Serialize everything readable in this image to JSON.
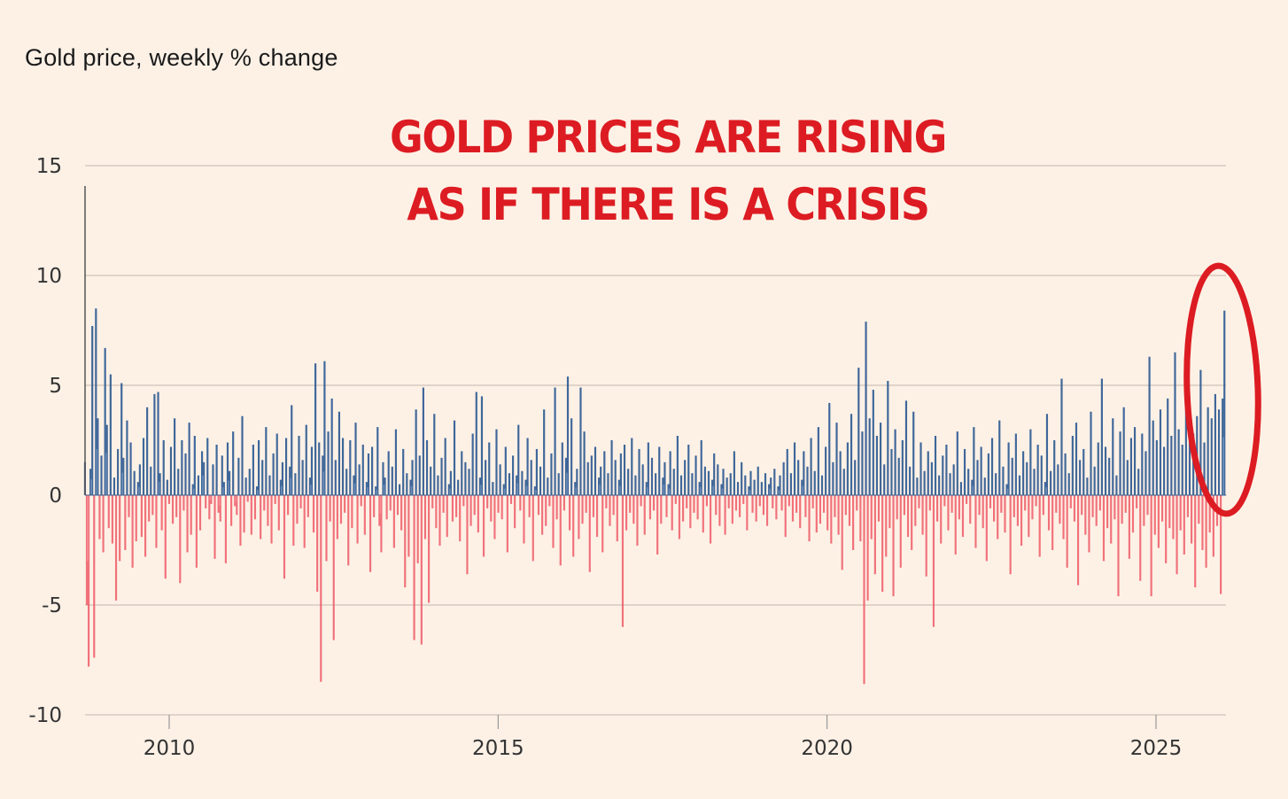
{
  "chart_data": {
    "type": "bar",
    "title": "Gold price, weekly % change",
    "annotation": {
      "headline_line1": "GOLD PRICES ARE RISING",
      "headline_line2": "AS IF THERE IS A CRISIS",
      "highlight": "red ellipse around the most recent weeks (late 2025 – early 2026)",
      "highlight_color": "#dc1c22"
    },
    "xlabel": "",
    "ylabel": "",
    "xlim": [
      2008.72,
      2026.06
    ],
    "ylim": [
      -10,
      15
    ],
    "yticks": [
      15,
      10,
      5,
      0,
      -5,
      -10
    ],
    "ytick_labels": [
      "15",
      "10",
      "5",
      "0",
      "-5",
      "-10"
    ],
    "xticks": [
      2010,
      2015,
      2020,
      2025
    ],
    "xtick_labels": [
      "2010",
      "2015",
      "2020",
      "2025"
    ],
    "grid": true,
    "legend": "none",
    "colors": {
      "positive": "#2f5b93",
      "negative": "#ee5a66",
      "grid": "#d7cbc0",
      "axis": "#555555"
    },
    "frequency": "weekly",
    "notable_points": [
      {
        "x": 2008.9,
        "value": 8.5
      },
      {
        "x": 2008.85,
        "value": 7.7
      },
      {
        "x": 2008.79,
        "value": -7.8
      },
      {
        "x": 2008.87,
        "value": -7.4
      },
      {
        "x": 2009.1,
        "value": 6.7
      },
      {
        "x": 2011.7,
        "value": 6.0
      },
      {
        "x": 2011.85,
        "value": 6.1
      },
      {
        "x": 2011.75,
        "value": -8.5
      },
      {
        "x": 2012.0,
        "value": -6.6
      },
      {
        "x": 2013.5,
        "value": -6.6
      },
      {
        "x": 2013.65,
        "value": -6.8
      },
      {
        "x": 2016.1,
        "value": 5.4
      },
      {
        "x": 2016.85,
        "value": -6.0
      },
      {
        "x": 2020.2,
        "value": 7.9
      },
      {
        "x": 2020.17,
        "value": -8.6
      },
      {
        "x": 2021.5,
        "value": -6.0
      },
      {
        "x": 2023.3,
        "value": 5.3
      },
      {
        "x": 2024.8,
        "value": 6.3
      },
      {
        "x": 2025.3,
        "value": 6.5
      },
      {
        "x": 2025.75,
        "value": 5.7
      },
      {
        "x": 2026.02,
        "value": 8.4
      },
      {
        "x": 2025.98,
        "value": -4.5
      }
    ],
    "series": [
      {
        "name": "weekly % change",
        "start_year": 2008.72,
        "step_years": 0.01923,
        "values": [
          1.5,
          -5.0,
          -7.8,
          1.2,
          7.7,
          -7.4,
          8.5,
          3.5,
          -2.0,
          1.8,
          -2.6,
          6.7,
          3.2,
          -1.5,
          5.5,
          -2.2,
          0.8,
          -4.8,
          2.1,
          -3.0,
          5.1,
          1.7,
          -2.5,
          3.4,
          -1.0,
          2.4,
          -3.3,
          1.1,
          -2.1,
          0.6,
          1.4,
          -1.9,
          2.6,
          -2.8,
          4.0,
          -1.2,
          1.3,
          -0.9,
          4.6,
          -2.4,
          4.7,
          1.0,
          -1.6,
          2.5,
          -3.8,
          0.7,
          -0.4,
          2.2,
          -1.3,
          3.5,
          -1.0,
          1.2,
          -4.0,
          2.5,
          -0.7,
          1.9,
          -2.6,
          3.3,
          -1.8,
          0.5,
          2.7,
          -3.3,
          0.9,
          -1.6,
          2.0,
          1.5,
          -0.6,
          2.6,
          -1.1,
          -0.4,
          1.4,
          -2.9,
          2.3,
          -0.8,
          -1.2,
          1.8,
          0.6,
          -3.1,
          2.4,
          1.1,
          -1.4,
          2.9,
          -0.5,
          -0.9,
          1.7,
          -2.3,
          3.6,
          -1.7,
          0.8,
          -0.3,
          1.2,
          -1.8,
          2.3,
          -1.1,
          0.4,
          2.5,
          -2.0,
          1.6,
          -0.7,
          3.1,
          -1.4,
          0.9,
          -2.2,
          1.9,
          -0.4,
          2.8,
          -1.6,
          0.7,
          1.5,
          -3.8,
          2.6,
          -0.9,
          1.3,
          4.1,
          -2.3,
          1.0,
          -1.3,
          2.7,
          -0.6,
          1.6,
          -2.4,
          3.2,
          -1.0,
          0.8,
          2.2,
          -1.7,
          6.0,
          -4.4,
          2.4,
          -8.5,
          1.8,
          6.1,
          -3.0,
          2.9,
          -1.2,
          4.4,
          -6.6,
          1.6,
          -2.0,
          3.8,
          -1.3,
          2.6,
          -0.8,
          1.2,
          -3.2,
          2.5,
          -1.5,
          0.9,
          3.3,
          -2.2,
          1.4,
          -0.5,
          2.3,
          -1.8,
          0.6,
          1.9,
          -3.5,
          2.2,
          -1.0,
          0.4,
          3.1,
          -1.4,
          -2.6,
          1.5,
          0.8,
          -1.1,
          2.0,
          -0.7,
          1.3,
          -2.4,
          3.0,
          -0.9,
          0.5,
          -1.6,
          2.1,
          -4.2,
          1.0,
          -2.8,
          0.7,
          1.6,
          -6.6,
          3.9,
          -3.1,
          1.8,
          -6.8,
          4.9,
          -2.0,
          2.5,
          -4.9,
          1.3,
          -0.6,
          3.7,
          -1.5,
          0.9,
          -2.3,
          1.7,
          -0.8,
          2.6,
          -1.9,
          0.5,
          1.1,
          -1.2,
          3.4,
          -1.0,
          0.7,
          -2.1,
          2.0,
          -0.5,
          1.5,
          -3.6,
          1.2,
          -1.4,
          2.8,
          -0.9,
          4.7,
          -1.7,
          0.8,
          4.5,
          -2.8,
          1.6,
          -0.6,
          2.4,
          -1.2,
          0.6,
          -2.0,
          3.0,
          -0.8,
          1.4,
          -1.1,
          0.5,
          2.2,
          -2.6,
          1.0,
          -0.4,
          1.8,
          -1.5,
          0.9,
          3.2,
          -0.7,
          1.1,
          -2.2,
          0.7,
          2.6,
          -1.0,
          1.6,
          -3.0,
          0.4,
          2.1,
          -0.9,
          1.3,
          -1.8,
          3.9,
          -1.4,
          0.8,
          -0.5,
          1.9,
          -2.4,
          4.9,
          -1.1,
          1.0,
          -3.2,
          2.4,
          -0.7,
          1.7,
          5.4,
          -1.6,
          3.5,
          -2.8,
          0.6,
          1.2,
          -2.0,
          4.9,
          -1.3,
          2.9,
          -0.8,
          1.5,
          -3.5,
          1.8,
          -1.0,
          2.2,
          -1.9,
          0.8,
          1.3,
          -2.6,
          2.0,
          -0.6,
          1.0,
          -1.4,
          2.5,
          -0.9,
          1.6,
          -2.1,
          0.7,
          1.9,
          -6.0,
          2.3,
          -1.6,
          1.2,
          -0.8,
          2.6,
          -1.3,
          0.9,
          -2.3,
          2.1,
          -0.5,
          1.4,
          -1.8,
          0.6,
          2.4,
          -1.1,
          1.7,
          -0.7,
          1.0,
          -2.7,
          2.2,
          -1.3,
          0.8,
          1.5,
          -1.0,
          0.5,
          2.0,
          -1.6,
          1.2,
          -0.4,
          2.7,
          -2.0,
          0.9,
          -1.2,
          1.6,
          -0.6,
          2.3,
          -1.5,
          1.0,
          -0.8,
          1.8,
          -1.1,
          0.6,
          2.5,
          -1.7,
          1.3,
          -0.5,
          1.1,
          -2.2,
          0.7,
          1.9,
          -0.9,
          1.4,
          -1.4,
          0.5,
          1.2,
          -1.8,
          0.8,
          -0.6,
          1.0,
          -1.3,
          2.0,
          -0.7,
          0.6,
          -1.0,
          1.5,
          -0.4,
          0.9,
          -1.6,
          0.4,
          1.1,
          -0.8,
          0.7,
          -1.2,
          1.3,
          -0.5,
          0.6,
          -0.9,
          1.0,
          -1.4,
          0.5,
          0.8,
          -0.6,
          1.2,
          -1.1,
          0.4,
          0.9,
          -0.7,
          1.5,
          -1.9,
          2.1,
          -0.5,
          1.0,
          -1.2,
          2.4,
          -0.8,
          1.6,
          -1.5,
          0.7,
          2.0,
          -1.0,
          1.3,
          -2.1,
          2.6,
          -0.6,
          1.1,
          -1.7,
          3.1,
          -1.3,
          0.9,
          -0.8,
          2.2,
          -1.6,
          4.2,
          -2.2,
          1.5,
          -1.0,
          3.3,
          -1.8,
          2.0,
          -3.4,
          1.2,
          -0.9,
          2.4,
          -1.4,
          3.7,
          -2.5,
          1.6,
          -0.7,
          5.8,
          -2.1,
          2.9,
          -8.6,
          7.9,
          -4.8,
          3.5,
          -2.0,
          4.8,
          -3.6,
          2.7,
          -1.2,
          3.3,
          -4.4,
          1.4,
          -2.8,
          5.2,
          -1.5,
          2.1,
          -4.6,
          3.0,
          -1.1,
          1.7,
          -3.3,
          2.5,
          -0.9,
          4.3,
          -1.9,
          1.3,
          -2.5,
          3.8,
          -1.4,
          0.8,
          -0.6,
          2.4,
          -1.8,
          1.1,
          -3.7,
          2.0,
          -0.7,
          1.5,
          -6.0,
          2.7,
          -1.2,
          0.9,
          -2.2,
          1.8,
          -0.5,
          2.3,
          -1.6,
          1.0,
          -0.8,
          1.4,
          -2.7,
          2.9,
          -1.1,
          0.6,
          -1.9,
          2.1,
          -0.4,
          1.2,
          -1.3,
          0.7,
          3.1,
          -2.4,
          1.6,
          -0.9,
          2.2,
          -1.5,
          0.8,
          -3.0,
          1.9,
          -0.6,
          2.6,
          -1.2,
          1.0,
          -2.0,
          3.4,
          -0.8,
          1.3,
          -1.7,
          0.5,
          2.4,
          -3.6,
          1.7,
          -1.0,
          2.8,
          -1.4,
          0.9,
          -2.3,
          2.0,
          -0.7,
          1.5,
          -1.9,
          3.0,
          -1.1,
          1.2,
          -0.5,
          2.3,
          -2.8,
          1.8,
          -0.9,
          0.6,
          3.7,
          -1.6,
          1.1,
          -2.5,
          2.5,
          -0.8,
          1.4,
          -1.3,
          5.3,
          -2.0,
          1.9,
          -3.3,
          1.0,
          -0.6,
          2.7,
          -1.2,
          3.3,
          -4.1,
          1.6,
          -0.9,
          2.1,
          -1.8,
          0.8,
          -2.6,
          3.8,
          -1.0,
          1.3,
          -1.4,
          2.4,
          -0.7,
          5.3,
          -3.0,
          2.2,
          -1.5,
          1.7,
          -2.2,
          3.5,
          -1.1,
          0.9,
          -4.6,
          2.9,
          -1.3,
          4.0,
          -0.8,
          1.6,
          -2.9,
          2.6,
          -1.7,
          3.1,
          -0.6,
          1.2,
          -3.9,
          2.8,
          -1.4,
          2.0,
          -0.9,
          6.3,
          -4.6,
          3.4,
          -1.8,
          2.5,
          -2.4,
          3.9,
          -1.2,
          2.2,
          -3.1,
          4.4,
          -1.5,
          2.7,
          -2.0,
          6.5,
          -3.6,
          3.0,
          -1.6,
          2.3,
          -2.7,
          4.3,
          -1.0,
          3.3,
          -2.2,
          2.8,
          -4.2,
          3.6,
          -1.3,
          5.7,
          -2.5,
          2.4,
          -3.3,
          4.0,
          -1.7,
          3.5,
          -2.8,
          4.6,
          -1.4,
          3.9,
          -4.5,
          4.4,
          8.4
        ],
        "note": "values approximated by reading bar heights against the y-axis gridlines"
      }
    ]
  }
}
